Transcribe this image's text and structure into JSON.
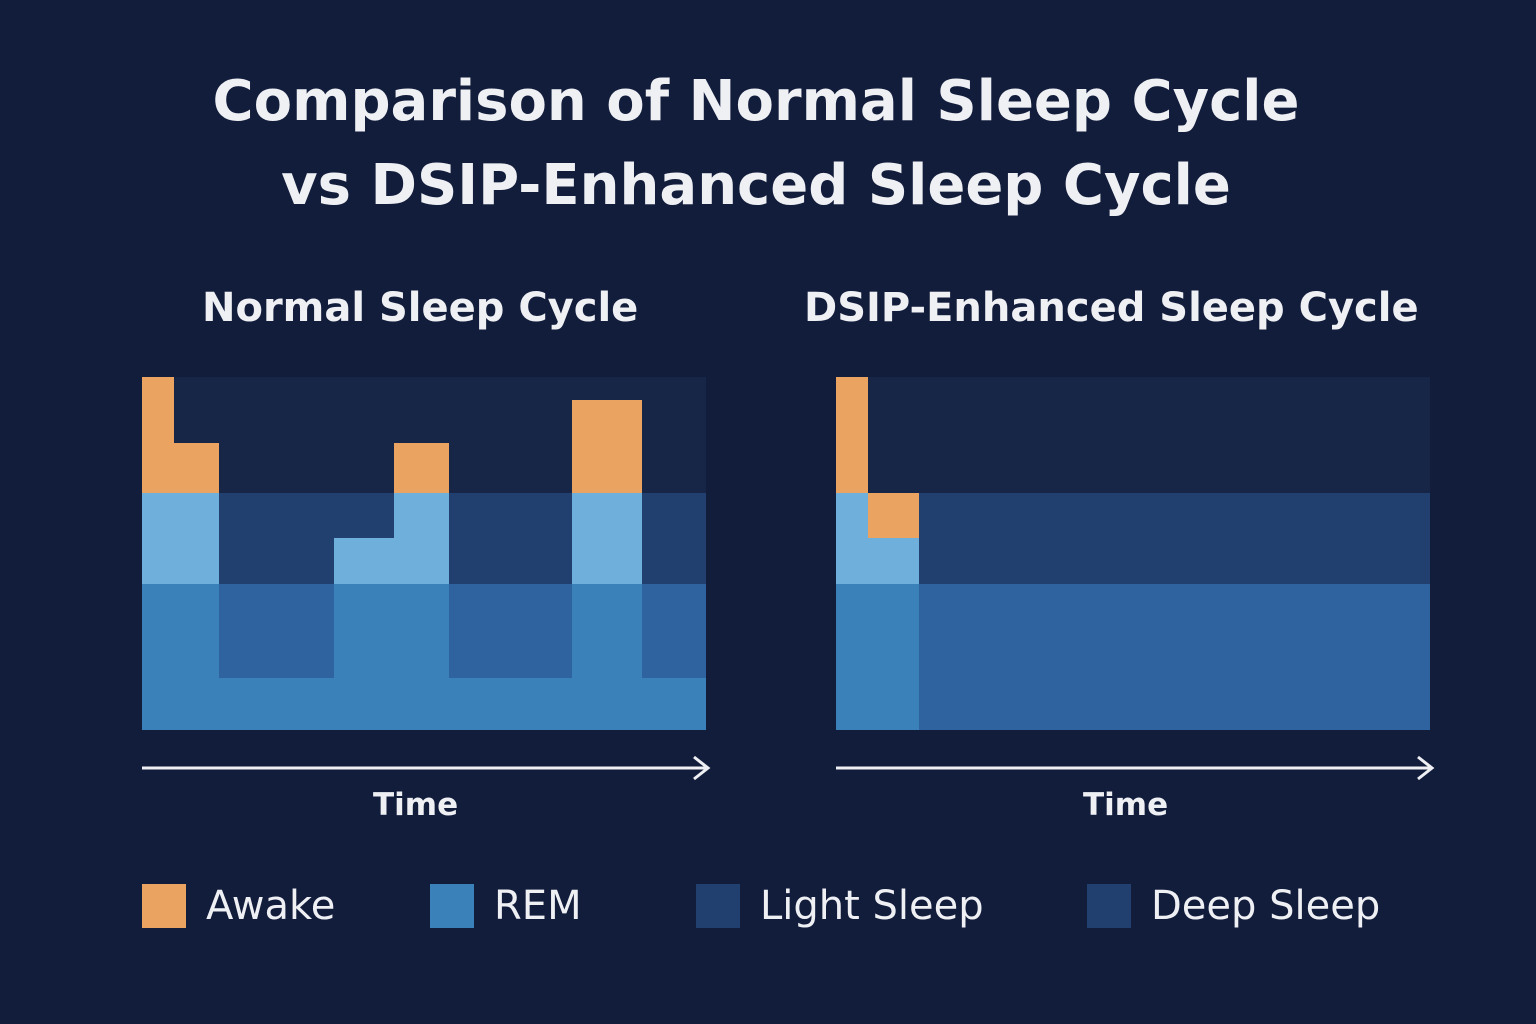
{
  "title_lines": [
    "Comparison of Normal Sleep Cycle",
    "vs DSIP-Enhanced Sleep Cycle"
  ],
  "colors": {
    "background": "#121c3b",
    "panel": "#172647",
    "awake": "#eba361",
    "light_stage": "#6fafdb",
    "rem": "#3a80b9",
    "light_sleep_band": "#21406f",
    "deep_sleep_band": "#2e63a0"
  },
  "chart_data": [
    {
      "type": "hypnogram-blocks",
      "title": "Normal Sleep Cycle",
      "xlabel": "Time",
      "stage_sequence": [
        "Awake",
        "Awake",
        "Light Sleep",
        "REM",
        "Awake",
        "Light Sleep",
        "Awake",
        "Light Sleep"
      ],
      "awakenings": 3
    },
    {
      "type": "hypnogram-blocks",
      "title": "DSIP-Enhanced Sleep Cycle",
      "xlabel": "Time",
      "stage_sequence": [
        "Awake",
        "Awake",
        "Deep Sleep"
      ],
      "awakenings": 1
    }
  ],
  "legend": [
    {
      "label": "Awake",
      "color": "#eba361"
    },
    {
      "label": "REM",
      "color": "#3a80b9"
    },
    {
      "label": "Light Sleep",
      "color": "#21406f"
    },
    {
      "label": "Deep Sleep",
      "color": "#21406f"
    }
  ]
}
